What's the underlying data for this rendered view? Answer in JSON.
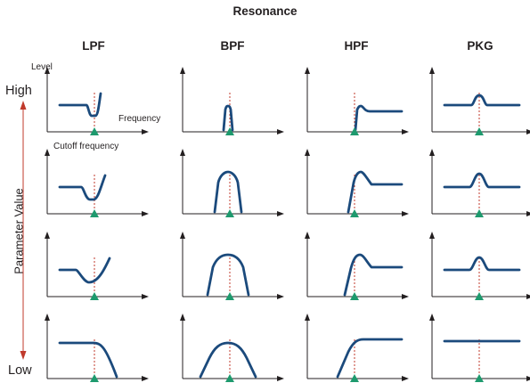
{
  "title": "Resonance",
  "columns": [
    "LPF",
    "BPF",
    "HPF",
    "PKG"
  ],
  "labels": {
    "level": "Level",
    "frequency": "Frequency",
    "cutoff": "Cutoff frequency",
    "high": "High",
    "low": "Low",
    "parameter": "Parameter Value"
  },
  "colors": {
    "curve": "#1b4a7c",
    "axis": "#231f20",
    "cutoff_line": "#c0392b",
    "cutoff_marker": "#1e9a6e",
    "parameter_arrow": "#c0392b"
  },
  "icons": [
    "cutoff-marker-triangle-icon",
    "up-arrow-icon",
    "down-arrow-icon"
  ]
}
